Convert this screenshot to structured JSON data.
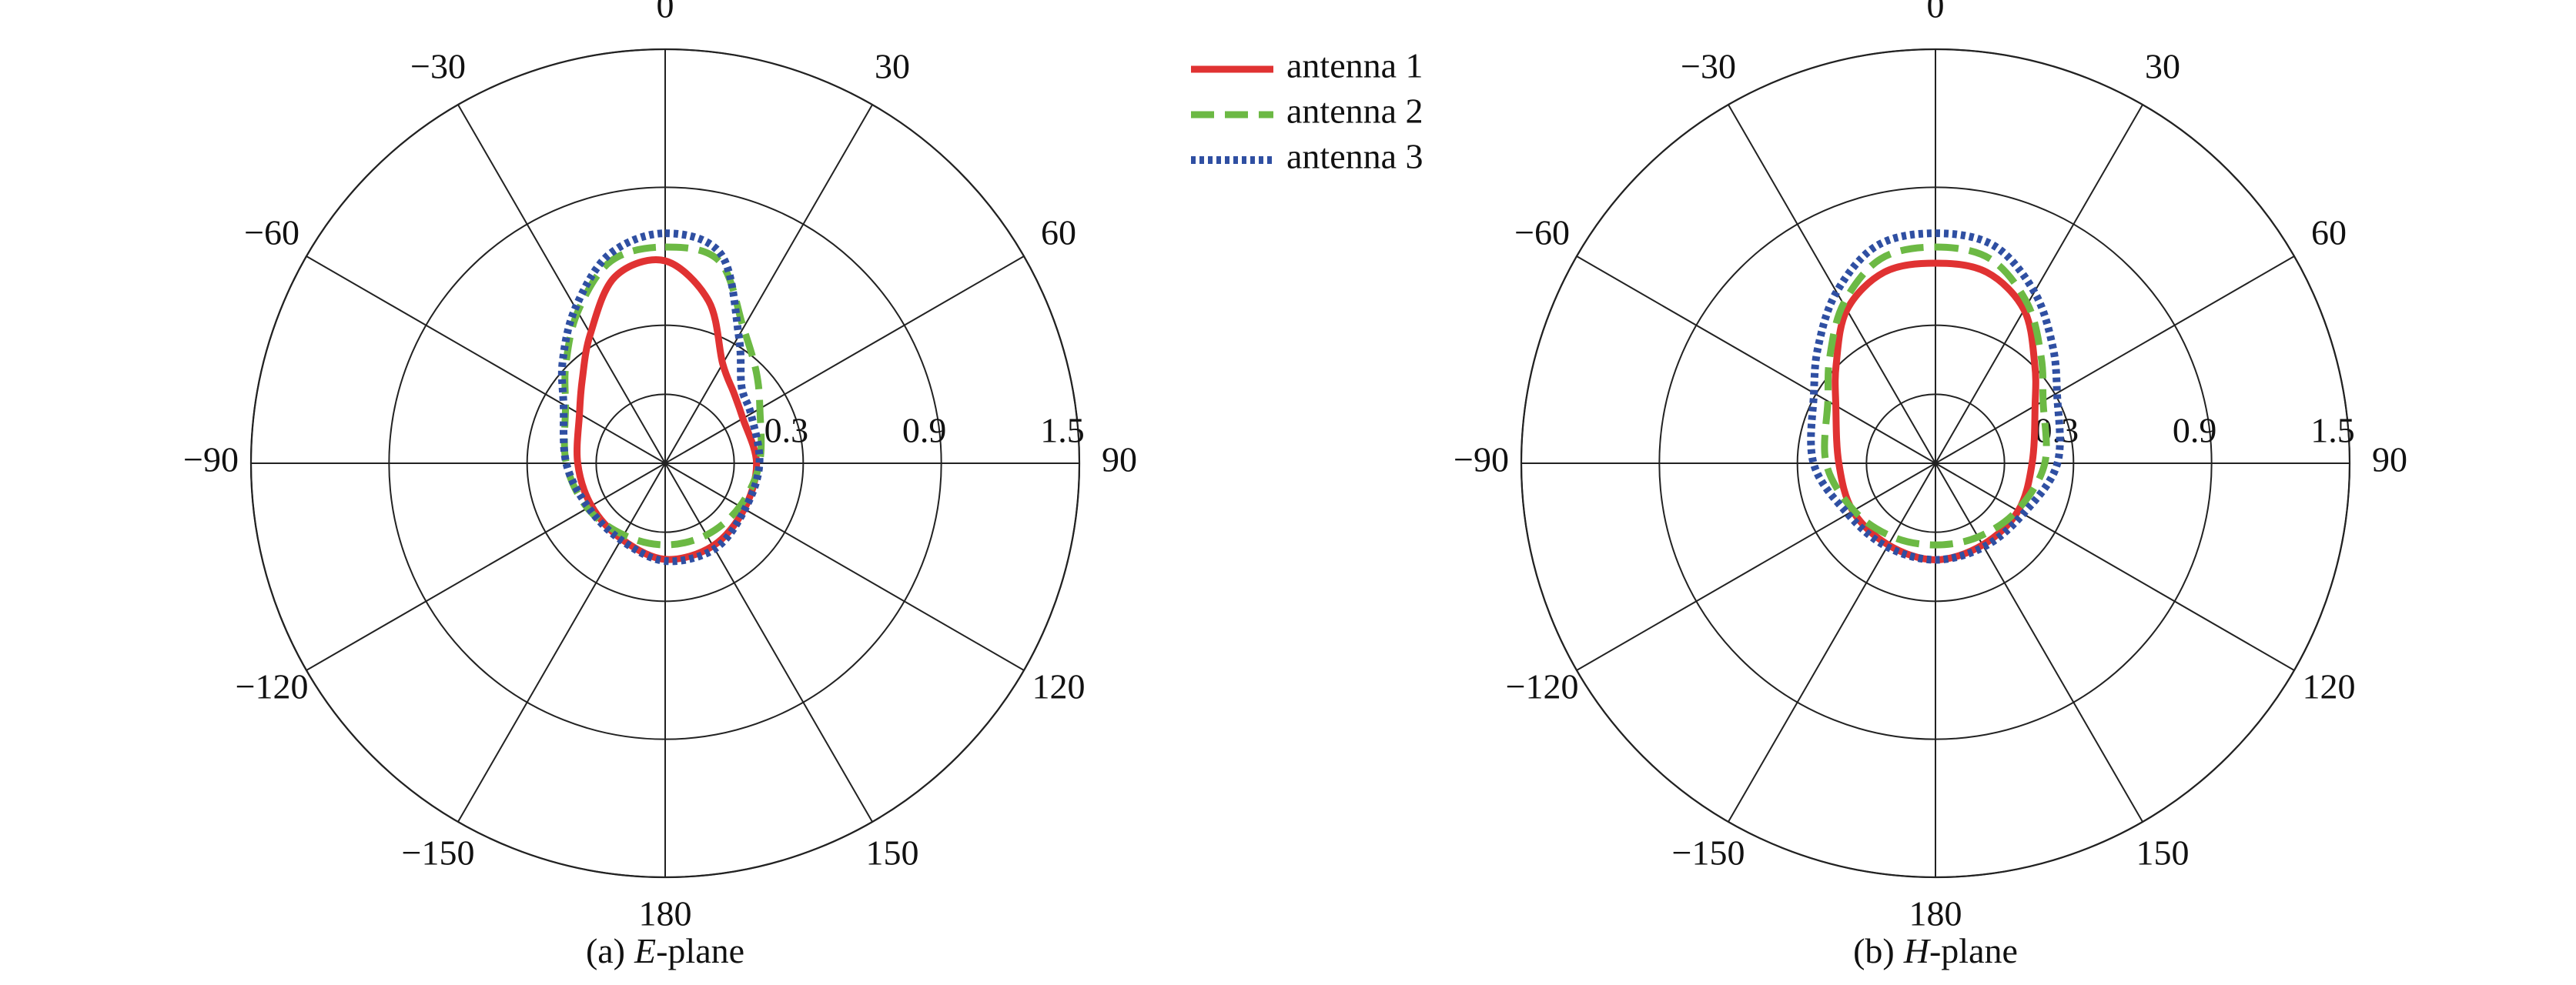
{
  "chart_data": [
    {
      "type": "polar",
      "caption": {
        "prefix": "(a)",
        "italic": "E",
        "suffix": "-plane"
      },
      "theta_zero": "top",
      "theta_direction": "clockwise",
      "rlim": [
        -0.3,
        1.5
      ],
      "rticks": [
        0.3,
        0.9,
        1.5
      ],
      "rgrid_minor": [
        0
      ],
      "thetaticks": [
        0,
        30,
        60,
        90,
        120,
        150,
        180,
        {
          "value": -150,
          "label": "−150"
        },
        {
          "value": -120,
          "label": "−120"
        },
        {
          "value": -90,
          "label": "−90"
        },
        {
          "value": -60,
          "label": "−60"
        },
        {
          "value": -30,
          "label": "−30"
        }
      ],
      "theta": [
        0,
        15,
        30,
        45,
        60,
        90,
        120,
        150,
        180,
        -150,
        -120,
        -90,
        -60,
        -45,
        -30,
        -15
      ],
      "legend": "top-center",
      "series": [
        {
          "name": "antenna 1",
          "color": "#e03232",
          "style": "solid",
          "values": [
            0.58,
            0.43,
            0.2,
            0.125,
            0.09,
            0.097,
            0.097,
            0.115,
            0.118,
            0.08,
            0.07,
            0.08,
            0.13,
            0.21,
            0.35,
            0.54
          ]
        },
        {
          "name": "antenna 2",
          "color": "#6cb944",
          "style": "dashed",
          "values": [
            0.64,
            0.61,
            0.38,
            0.26,
            0.175,
            0.11,
            0.075,
            0.06,
            0.055,
            0.06,
            0.09,
            0.13,
            0.2,
            0.31,
            0.46,
            0.61
          ]
        },
        {
          "name": "antenna 3",
          "color": "#2f4fa2",
          "style": "dotted",
          "values": [
            0.7,
            0.64,
            0.34,
            0.17,
            0.13,
            0.11,
            0.1,
            0.13,
            0.125,
            0.085,
            0.085,
            0.13,
            0.21,
            0.33,
            0.48,
            0.64
          ]
        }
      ]
    },
    {
      "type": "polar",
      "caption": {
        "prefix": "(b)",
        "italic": "H",
        "suffix": "-plane"
      },
      "theta_zero": "top",
      "theta_direction": "clockwise",
      "rlim": [
        -0.3,
        1.5
      ],
      "rticks": [
        0.3,
        0.9,
        1.5
      ],
      "rgrid_minor": [
        0
      ],
      "thetaticks": [
        0,
        30,
        60,
        90,
        120,
        150,
        180,
        {
          "value": -150,
          "label": "−150"
        },
        {
          "value": -120,
          "label": "−120"
        },
        {
          "value": -90,
          "label": "−90"
        },
        {
          "value": -60,
          "label": "−60"
        },
        {
          "value": -30,
          "label": "−30"
        }
      ],
      "theta": [
        0,
        15,
        30,
        45,
        60,
        90,
        120,
        150,
        180,
        -150,
        -120,
        -90,
        -60,
        -45,
        -30,
        -15
      ],
      "series": [
        {
          "color": "#e03232",
          "style": "solid",
          "values": [
            0.57,
            0.56,
            0.47,
            0.31,
            0.2,
            0.12,
            0.115,
            0.11,
            0.12,
            0.11,
            0.115,
            0.12,
            0.2,
            0.31,
            0.47,
            0.56
          ]
        },
        {
          "color": "#6cb944",
          "style": "dashed",
          "values": [
            0.64,
            0.62,
            0.5,
            0.35,
            0.24,
            0.175,
            0.11,
            0.07,
            0.055,
            0.07,
            0.11,
            0.175,
            0.24,
            0.35,
            0.5,
            0.62
          ]
        },
        {
          "color": "#2f4fa2",
          "style": "dotted",
          "values": [
            0.7,
            0.68,
            0.56,
            0.42,
            0.31,
            0.23,
            0.14,
            0.12,
            0.12,
            0.12,
            0.14,
            0.23,
            0.31,
            0.42,
            0.56,
            0.68
          ]
        }
      ]
    }
  ]
}
